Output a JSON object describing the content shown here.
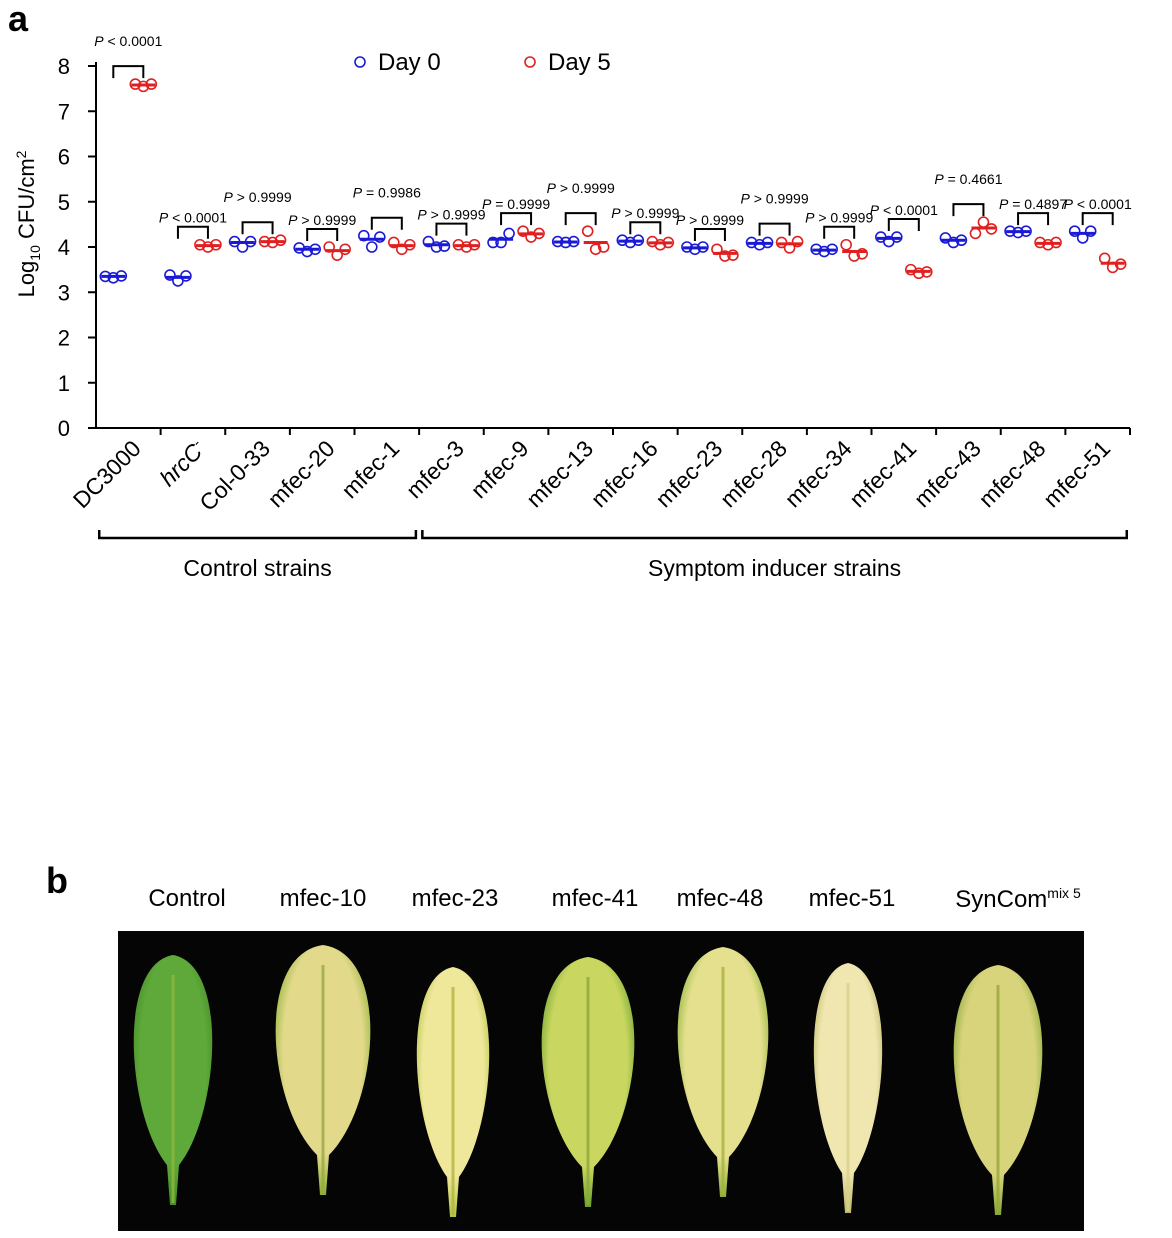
{
  "panel_a_label": "a",
  "panel_b_label": "b",
  "chart_data": {
    "type": "scatter",
    "ylabel_main": "Log",
    "ylabel_sub": "10",
    "ylabel_rest": " CFU/cm",
    "ylabel_sup": "2",
    "ylim": [
      0,
      8
    ],
    "yticks": [
      "0",
      "1",
      "2",
      "3",
      "4",
      "5",
      "6",
      "7",
      "8"
    ],
    "legend": [
      {
        "name": "Day 0",
        "color": "#1a1ad6"
      },
      {
        "name": "Day 5",
        "color": "#e02020"
      }
    ],
    "colors": {
      "day0": "#1a1ad6",
      "day5": "#e02020"
    },
    "categories": [
      {
        "label": "DC3000",
        "italic": false,
        "day0": [
          3.35,
          3.32,
          3.36
        ],
        "day0_mean": 3.35,
        "day5": [
          7.6,
          7.55,
          7.6
        ],
        "day5_mean": 7.58,
        "p": "P < 0.0001",
        "p_level": "high"
      },
      {
        "label": "hrcC",
        "label_sup": "-",
        "italic": true,
        "day0": [
          3.38,
          3.25,
          3.36
        ],
        "day0_mean": 3.33,
        "day5": [
          4.05,
          4.0,
          4.05
        ],
        "day5_mean": 4.03,
        "p": "P < 0.0001",
        "p_level": "low"
      },
      {
        "label": "Col-0-33",
        "italic": false,
        "day0": [
          4.12,
          4.0,
          4.12
        ],
        "day0_mean": 4.1,
        "day5": [
          4.12,
          4.1,
          4.15
        ],
        "day5_mean": 4.12,
        "p": "P > 0.9999",
        "p_level": "high"
      },
      {
        "label": "mfec-20",
        "italic": false,
        "day0": [
          3.98,
          3.9,
          3.95
        ],
        "day0_mean": 3.95,
        "day5": [
          4.0,
          3.82,
          3.95
        ],
        "day5_mean": 3.92,
        "p": "P > 0.9999",
        "p_level": "low"
      },
      {
        "label": "mfec-1",
        "italic": false,
        "day0": [
          4.25,
          4.0,
          4.22
        ],
        "day0_mean": 4.17,
        "day5": [
          4.1,
          3.95,
          4.05
        ],
        "day5_mean": 4.03,
        "p": "P = 0.9986",
        "p_level": "high"
      },
      {
        "label": "mfec-3",
        "italic": false,
        "day0": [
          4.12,
          4.0,
          4.02
        ],
        "day0_mean": 4.05,
        "day5": [
          4.05,
          4.0,
          4.05
        ],
        "day5_mean": 4.03,
        "p": "P > 0.9999",
        "p_level": "low"
      },
      {
        "label": "mfec-9",
        "italic": false,
        "day0": [
          4.1,
          4.1,
          4.3
        ],
        "day0_mean": 4.17,
        "day5": [
          4.35,
          4.22,
          4.3
        ],
        "day5_mean": 4.29,
        "p": "P = 0.9999",
        "p_level": "low"
      },
      {
        "label": "mfec-13",
        "italic": false,
        "day0": [
          4.12,
          4.1,
          4.12
        ],
        "day0_mean": 4.11,
        "day5": [
          4.35,
          3.95,
          4.0
        ],
        "day5_mean": 4.1,
        "p": "P > 0.9999",
        "p_level": "high"
      },
      {
        "label": "mfec-16",
        "italic": false,
        "day0": [
          4.15,
          4.1,
          4.15
        ],
        "day0_mean": 4.13,
        "day5": [
          4.12,
          4.05,
          4.1
        ],
        "day5_mean": 4.09,
        "p": "P > 0.9999",
        "p_level": "low"
      },
      {
        "label": "mfec-23",
        "italic": false,
        "day0": [
          4.0,
          3.95,
          4.0
        ],
        "day0_mean": 3.98,
        "day5": [
          3.95,
          3.8,
          3.82
        ],
        "day5_mean": 3.86,
        "p": "P > 0.9999",
        "p_level": "low"
      },
      {
        "label": "mfec-28",
        "italic": false,
        "day0": [
          4.1,
          4.05,
          4.1
        ],
        "day0_mean": 4.08,
        "day5": [
          4.1,
          3.98,
          4.12
        ],
        "day5_mean": 4.07,
        "p": "P > 0.9999",
        "p_level": "high"
      },
      {
        "label": "mfec-34",
        "italic": false,
        "day0": [
          3.95,
          3.9,
          3.95
        ],
        "day0_mean": 3.93,
        "day5": [
          4.05,
          3.8,
          3.85
        ],
        "day5_mean": 3.9,
        "p": "P > 0.9999",
        "p_level": "low"
      },
      {
        "label": "mfec-41",
        "italic": false,
        "day0": [
          4.22,
          4.12,
          4.22
        ],
        "day0_mean": 4.19,
        "day5": [
          3.5,
          3.42,
          3.45
        ],
        "day5_mean": 3.46,
        "p": "P < 0.0001",
        "p_level": "low"
      },
      {
        "label": "mfec-43",
        "italic": false,
        "day0": [
          4.2,
          4.1,
          4.15
        ],
        "day0_mean": 4.15,
        "day5": [
          4.3,
          4.55,
          4.4
        ],
        "day5_mean": 4.42,
        "p": "P = 0.4661",
        "p_level": "high"
      },
      {
        "label": "mfec-48",
        "italic": false,
        "day0": [
          4.35,
          4.32,
          4.35
        ],
        "day0_mean": 4.34,
        "day5": [
          4.1,
          4.05,
          4.1
        ],
        "day5_mean": 4.08,
        "p": "P = 0.4897",
        "p_level": "low"
      },
      {
        "label": "mfec-51",
        "italic": false,
        "day0": [
          4.35,
          4.2,
          4.35
        ],
        "day0_mean": 4.3,
        "day5": [
          3.75,
          3.55,
          3.62
        ],
        "day5_mean": 3.64,
        "p": "P < 0.0001",
        "p_level": "low"
      }
    ],
    "groups": [
      {
        "label": "Control strains",
        "from": 0,
        "to": 4
      },
      {
        "label": "Symptom inducer strains",
        "from": 5,
        "to": 15
      }
    ]
  },
  "panel_b": {
    "labels": [
      {
        "text": "Control",
        "sup": ""
      },
      {
        "text": "mfec-10",
        "sup": ""
      },
      {
        "text": "mfec-23",
        "sup": ""
      },
      {
        "text": "mfec-41",
        "sup": ""
      },
      {
        "text": "mfec-48",
        "sup": ""
      },
      {
        "text": "mfec-51",
        "sup": ""
      },
      {
        "text": "SynCom",
        "sup": "mix 5"
      }
    ],
    "leaf_colors": [
      {
        "edge": "#3f8a25",
        "center": "#5fa83a",
        "tip": "#8fb83a"
      },
      {
        "edge": "#7faa2a",
        "center": "#e2d98a",
        "tip": "#9aa843"
      },
      {
        "edge": "#a9c23a",
        "center": "#efe79a",
        "tip": "#b2b540"
      },
      {
        "edge": "#5c9a28",
        "center": "#c9d760",
        "tip": "#8ea83a"
      },
      {
        "edge": "#7eaa2c",
        "center": "#e4e08e",
        "tip": "#a7b23c"
      },
      {
        "edge": "#b8b460",
        "center": "#efe6b0",
        "tip": "#d8d28a"
      },
      {
        "edge": "#7aa22d",
        "center": "#d8d47c",
        "tip": "#9aa539"
      }
    ]
  }
}
